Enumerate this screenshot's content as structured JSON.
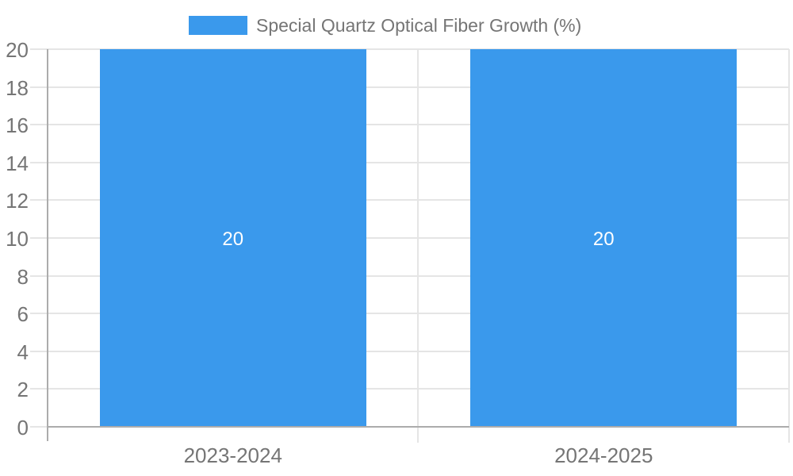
{
  "legend": {
    "label": "Special Quartz Optical Fiber Growth (%)",
    "swatch_color": "#3A99EC"
  },
  "chart_data": {
    "type": "bar",
    "title": "Special Quartz Optical Fiber Growth (%)",
    "categories": [
      "2023-2024",
      "2024-2025"
    ],
    "series": [
      {
        "name": "Special Quartz Optical Fiber Growth (%)",
        "values": [
          20,
          20
        ]
      }
    ],
    "bar_value_labels": [
      "20",
      "20"
    ],
    "ylabel": "",
    "xlabel": "",
    "ylim": [
      0,
      20
    ],
    "yticks": [
      0,
      2,
      4,
      6,
      8,
      10,
      12,
      14,
      16,
      18,
      20
    ],
    "grid": true,
    "legend_position": "top-center",
    "colors": {
      "bar": "#3A99EC",
      "grid_line": "#E5E5E5",
      "axis_line": "#ACACAC",
      "label_text": "#757575",
      "bar_label_text": "#FFFFFF"
    }
  }
}
